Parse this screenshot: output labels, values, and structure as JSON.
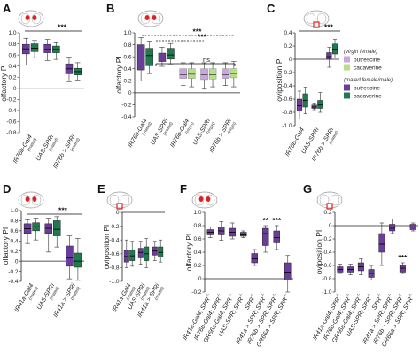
{
  "figure": {
    "colors": {
      "putrescine_mated": "#6a3d9a",
      "cadaverine_mated": "#1f7a4f",
      "putrescine_virgin": "#c9a6e0",
      "cadaverine_virgin": "#b6df8a",
      "brain_outline": "#999999",
      "brain_highlight": "#e02020"
    },
    "legend": {
      "virgin_header": "(virgin female)",
      "mated_header": "(mated female/male)",
      "items": [
        "putrescine",
        "cadaverine",
        "putrescine",
        "cadaverine"
      ]
    }
  },
  "chart_data": [
    {
      "panel": "A",
      "type": "box",
      "ylabel": "olfactory PI",
      "ylim": [
        -0.8,
        1.0
      ],
      "yticks": [
        "1.0",
        "0.8",
        "0.6",
        "0.4",
        "0.2",
        "0",
        "-0.2",
        "-0.4",
        "-0.6",
        "-0.8"
      ],
      "groups": [
        {
          "label": "IR76b-Gal4",
          "sub": "(mated)"
        },
        {
          "label": "UAS-SPRi",
          "sub": "(mated)"
        },
        {
          "label": "IR76b > SPRi",
          "sub": "(mated)"
        }
      ],
      "boxes": [
        {
          "group": 0,
          "series": "putrescine_mated",
          "min": 0.42,
          "q1": 0.62,
          "median": 0.71,
          "q3": 0.79,
          "max": 0.9
        },
        {
          "group": 0,
          "series": "cadaverine_mated",
          "min": 0.55,
          "q1": 0.66,
          "median": 0.72,
          "q3": 0.8,
          "max": 0.86
        },
        {
          "group": 1,
          "series": "putrescine_mated",
          "min": 0.5,
          "q1": 0.64,
          "median": 0.7,
          "q3": 0.79,
          "max": 0.88
        },
        {
          "group": 1,
          "series": "cadaverine_mated",
          "min": 0.52,
          "q1": 0.64,
          "median": 0.7,
          "q3": 0.76,
          "max": 0.82
        },
        {
          "group": 2,
          "series": "putrescine_mated",
          "min": 0.12,
          "q1": 0.26,
          "median": 0.35,
          "q3": 0.44,
          "max": 0.56
        },
        {
          "group": 2,
          "series": "cadaverine_mated",
          "min": 0.15,
          "q1": 0.24,
          "median": 0.3,
          "q3": 0.36,
          "max": 0.46
        }
      ],
      "annotations": [
        {
          "text": "***"
        }
      ]
    },
    {
      "panel": "B",
      "type": "box",
      "ylabel": "olfactory PI",
      "ylim": [
        -0.4,
        1.0
      ],
      "yticks": [
        "1.0",
        "0.8",
        "0.6",
        "0.4",
        "0.2",
        "0",
        "-0.2",
        "-0.4"
      ],
      "groups": [
        {
          "label": "IR76b-Gal4",
          "sub": "(mated)"
        },
        {
          "label": "UAS-SPRi",
          "sub": "(mated)"
        },
        {
          "label": "IR76b-Gal4",
          "sub": "(virgin)"
        },
        {
          "label": "UAS-SPRi",
          "sub": "(virgin)"
        },
        {
          "label": "IR76b > SPRi",
          "sub": "(virgin)"
        }
      ],
      "boxes": [
        {
          "group": 0,
          "series": "putrescine_mated",
          "min": 0.2,
          "q1": 0.38,
          "median": 0.58,
          "q3": 0.8,
          "max": 0.92
        },
        {
          "group": 0,
          "series": "cadaverine_mated",
          "min": 0.32,
          "q1": 0.45,
          "median": 0.62,
          "q3": 0.74,
          "max": 0.86
        },
        {
          "group": 1,
          "series": "putrescine_mated",
          "min": 0.44,
          "q1": 0.52,
          "median": 0.58,
          "q3": 0.66,
          "max": 0.76
        },
        {
          "group": 1,
          "series": "cadaverine_mated",
          "min": 0.48,
          "q1": 0.56,
          "median": 0.63,
          "q3": 0.74,
          "max": 0.82
        },
        {
          "group": 2,
          "series": "putrescine_virgin",
          "min": 0.12,
          "q1": 0.24,
          "median": 0.3,
          "q3": 0.4,
          "max": 0.5
        },
        {
          "group": 2,
          "series": "cadaverine_virgin",
          "min": 0.1,
          "q1": 0.24,
          "median": 0.31,
          "q3": 0.4,
          "max": 0.5
        },
        {
          "group": 3,
          "series": "putrescine_virgin",
          "min": 0.06,
          "q1": 0.22,
          "median": 0.3,
          "q3": 0.4,
          "max": 0.5
        },
        {
          "group": 3,
          "series": "cadaverine_virgin",
          "min": 0.1,
          "q1": 0.23,
          "median": 0.3,
          "q3": 0.4,
          "max": 0.5
        },
        {
          "group": 4,
          "series": "putrescine_virgin",
          "min": 0.12,
          "q1": 0.24,
          "median": 0.3,
          "q3": 0.4,
          "max": 0.5
        },
        {
          "group": 4,
          "series": "cadaverine_virgin",
          "min": 0.1,
          "q1": 0.25,
          "median": 0.32,
          "q3": 0.4,
          "max": 0.52
        }
      ],
      "annotations": [
        {
          "text": "***"
        },
        {
          "text": "***"
        },
        {
          "text": "ns"
        }
      ]
    },
    {
      "panel": "C",
      "type": "box",
      "ylabel": "oviposition PI",
      "ylim": [
        -1.0,
        0.4
      ],
      "yticks": [
        "0.4",
        "0.2",
        "0",
        "-0.2",
        "-0.4",
        "-0.6",
        "-0.8",
        "-1.0"
      ],
      "groups": [
        {
          "label": "IR76b-Gal4",
          "sub": ""
        },
        {
          "label": "UAS-SPRi",
          "sub": ""
        },
        {
          "label": "IR76b > SPRi",
          "sub": "(mated)"
        }
      ],
      "boxes": [
        {
          "group": 0,
          "series": "putrescine_mated",
          "min": -0.9,
          "q1": -0.78,
          "median": -0.7,
          "q3": -0.6,
          "max": -0.48
        },
        {
          "group": 0,
          "series": "cadaverine_mated",
          "min": -0.82,
          "q1": -0.72,
          "median": -0.62,
          "q3": -0.52,
          "max": -0.42
        },
        {
          "group": 1,
          "series": "putrescine_mated",
          "min": -0.76,
          "q1": -0.74,
          "median": -0.72,
          "q3": -0.69,
          "max": -0.66
        },
        {
          "group": 1,
          "series": "cadaverine_mated",
          "min": -0.8,
          "q1": -0.74,
          "median": -0.69,
          "q3": -0.62,
          "max": -0.5
        },
        {
          "group": 2,
          "series": "putrescine_mated",
          "min": -0.12,
          "q1": 0.0,
          "median": 0.04,
          "q3": 0.1,
          "max": 0.18
        },
        {
          "group": 2,
          "series": "cadaverine_mated",
          "min": 0.02,
          "q1": 0.08,
          "median": 0.15,
          "q3": 0.23,
          "max": 0.3
        }
      ],
      "annotations": [
        {
          "text": "***"
        }
      ]
    },
    {
      "panel": "D",
      "type": "box",
      "ylabel": "olfactory PI",
      "ylim": [
        -0.4,
        1.0
      ],
      "yticks": [
        "1.0",
        "0.8",
        "0.6",
        "0.4",
        "0.2",
        "0",
        "-0.2",
        "-0.4"
      ],
      "groups": [
        {
          "label": "IR41a-Gal4",
          "sub": "(mated)"
        },
        {
          "label": "UAS-SPRi",
          "sub": "(mated)"
        },
        {
          "label": "IR41a > SPRi",
          "sub": "(mated)"
        }
      ],
      "boxes": [
        {
          "group": 0,
          "series": "putrescine_mated",
          "min": 0.35,
          "q1": 0.55,
          "median": 0.64,
          "q3": 0.74,
          "max": 0.82
        },
        {
          "group": 0,
          "series": "cadaverine_mated",
          "min": 0.42,
          "q1": 0.6,
          "median": 0.68,
          "q3": 0.76,
          "max": 0.85
        },
        {
          "group": 1,
          "series": "putrescine_mated",
          "min": 0.18,
          "q1": 0.55,
          "median": 0.65,
          "q3": 0.74,
          "max": 0.85
        },
        {
          "group": 1,
          "series": "cadaverine_mated",
          "min": 0.28,
          "q1": 0.5,
          "median": 0.63,
          "q3": 0.8,
          "max": 0.88
        },
        {
          "group": 2,
          "series": "putrescine_mated",
          "min": -0.35,
          "q1": -0.1,
          "median": 0.06,
          "q3": 0.3,
          "max": 0.5
        },
        {
          "group": 2,
          "series": "cadaverine_mated",
          "min": -0.38,
          "q1": -0.12,
          "median": 0.0,
          "q3": 0.16,
          "max": 0.45
        }
      ],
      "annotations": [
        {
          "text": "***"
        }
      ]
    },
    {
      "panel": "E",
      "type": "box",
      "ylabel": "oviposition PI",
      "ylim": [
        -1.0,
        0.0
      ],
      "yticks": [
        "0",
        "-0.2",
        "-0.4",
        "-0.6",
        "-0.8",
        "-1.0"
      ],
      "groups": [
        {
          "label": "IR41a-Gal4",
          "sub": "(mated)"
        },
        {
          "label": "UAS-SPRi",
          "sub": "(mated)"
        },
        {
          "label": "IR41a > SPRi",
          "sub": "(mated)"
        }
      ],
      "boxes": [
        {
          "group": 0,
          "series": "putrescine_mated",
          "min": -0.8,
          "q1": -0.72,
          "median": -0.64,
          "q3": -0.55,
          "max": -0.4
        },
        {
          "group": 0,
          "series": "cadaverine_mated",
          "min": -0.78,
          "q1": -0.7,
          "median": -0.63,
          "q3": -0.55,
          "max": -0.42
        },
        {
          "group": 1,
          "series": "putrescine_mated",
          "min": -0.75,
          "q1": -0.66,
          "median": -0.58,
          "q3": -0.52,
          "max": -0.42
        },
        {
          "group": 1,
          "series": "cadaverine_mated",
          "min": -0.8,
          "q1": -0.7,
          "median": -0.6,
          "q3": -0.5,
          "max": -0.38
        },
        {
          "group": 2,
          "series": "putrescine_mated",
          "min": -0.7,
          "q1": -0.62,
          "median": -0.56,
          "q3": -0.5,
          "max": -0.42
        },
        {
          "group": 2,
          "series": "cadaverine_mated",
          "min": -0.72,
          "q1": -0.65,
          "median": -0.58,
          "q3": -0.5,
          "max": -0.4
        }
      ],
      "annotations": []
    },
    {
      "panel": "F",
      "type": "box",
      "ylabel": "olfactory PI",
      "ylim": [
        -0.2,
        1.0
      ],
      "yticks": [
        "1.0",
        "0.8",
        "0.6",
        "0.4",
        "0.2",
        "0",
        "-0.2"
      ],
      "groups": [
        {
          "label": "IR41a-Gal4; SPR",
          "sup": "-/-"
        },
        {
          "label": "IR76b-Gal4; SPR",
          "sup": "-/-"
        },
        {
          "label": "GR66a-Gal4; SPR",
          "sup": "-/-"
        },
        {
          "label": "UAS-SPR; SPR",
          "sup": "-/-"
        },
        {
          "label": "SPR",
          "sup": "-/-"
        },
        {
          "label": "IR41a > SPR; SPR",
          "sup": "-/-"
        },
        {
          "label": "IR76b > SPR; SPR",
          "sup": "-/-"
        },
        {
          "label": "GR66a > SPR; SPR",
          "sup": "-/-"
        }
      ],
      "boxes": [
        {
          "group": 0,
          "series": "putrescine_mated",
          "min": 0.62,
          "q1": 0.66,
          "median": 0.7,
          "q3": 0.74,
          "max": 0.78
        },
        {
          "group": 1,
          "series": "putrescine_mated",
          "min": 0.58,
          "q1": 0.66,
          "median": 0.72,
          "q3": 0.78,
          "max": 0.86
        },
        {
          "group": 2,
          "series": "putrescine_mated",
          "min": 0.6,
          "q1": 0.64,
          "median": 0.7,
          "q3": 0.76,
          "max": 0.84
        },
        {
          "group": 3,
          "series": "putrescine_mated",
          "min": 0.62,
          "q1": 0.64,
          "median": 0.66,
          "q3": 0.7,
          "max": 0.72
        },
        {
          "group": 4,
          "series": "putrescine_mated",
          "min": 0.2,
          "q1": 0.24,
          "median": 0.3,
          "q3": 0.38,
          "max": 0.44
        },
        {
          "group": 5,
          "series": "putrescine_mated",
          "min": 0.4,
          "q1": 0.5,
          "median": 0.68,
          "q3": 0.76,
          "max": 0.8
        },
        {
          "group": 6,
          "series": "putrescine_mated",
          "min": 0.44,
          "q1": 0.54,
          "median": 0.62,
          "q3": 0.72,
          "max": 0.8
        },
        {
          "group": 7,
          "series": "putrescine_mated",
          "min": -0.2,
          "q1": -0.02,
          "median": 0.1,
          "q3": 0.24,
          "max": 0.35
        }
      ],
      "annotations": [
        {
          "text": "**"
        },
        {
          "text": "***"
        }
      ]
    },
    {
      "panel": "G",
      "type": "box",
      "ylabel": "oviposition PI",
      "ylim": [
        -1.0,
        0.2
      ],
      "yticks": [
        "0.2",
        "0",
        "-0.2",
        "-0.4",
        "-0.6",
        "-0.8",
        "-1.0"
      ],
      "groups": [
        {
          "label": "IR41a-Gal4; SPR",
          "sup": "-/-"
        },
        {
          "label": "IR76b-Gal4; SPR",
          "sup": "-/-"
        },
        {
          "label": "GR66a-Gal4; SPR",
          "sup": "-/-"
        },
        {
          "label": "UAS-SPR; SPR",
          "sup": "-/-"
        },
        {
          "label": "SPR",
          "sup": "-/-"
        },
        {
          "label": "IR41a > SPR; SPR",
          "sup": "-/-"
        },
        {
          "label": "IR76b > SPR; SPR",
          "sup": "-/-"
        },
        {
          "label": "GR66a > SPR; SPR",
          "sup": "-/-"
        }
      ],
      "boxes": [
        {
          "group": 0,
          "series": "putrescine_mated",
          "min": -0.72,
          "q1": -0.7,
          "median": -0.66,
          "q3": -0.62,
          "max": -0.58
        },
        {
          "group": 1,
          "series": "putrescine_mated",
          "min": -0.74,
          "q1": -0.7,
          "median": -0.66,
          "q3": -0.62,
          "max": -0.58
        },
        {
          "group": 2,
          "series": "putrescine_mated",
          "min": -0.74,
          "q1": -0.68,
          "median": -0.62,
          "q3": -0.56,
          "max": -0.5
        },
        {
          "group": 3,
          "series": "putrescine_mated",
          "min": -0.82,
          "q1": -0.78,
          "median": -0.72,
          "q3": -0.66,
          "max": -0.6
        },
        {
          "group": 4,
          "series": "putrescine_mated",
          "min": -0.6,
          "q1": -0.4,
          "median": -0.28,
          "q3": -0.12,
          "max": 0.04
        },
        {
          "group": 5,
          "series": "putrescine_mated",
          "min": -0.12,
          "q1": -0.08,
          "median": -0.04,
          "q3": 0.02,
          "max": 0.1
        },
        {
          "group": 6,
          "series": "putrescine_mated",
          "min": -0.72,
          "q1": -0.7,
          "median": -0.64,
          "q3": -0.6,
          "max": -0.56
        },
        {
          "group": 7,
          "series": "putrescine_mated",
          "min": -0.08,
          "q1": -0.06,
          "median": -0.02,
          "q3": 0.02,
          "max": 0.04
        }
      ],
      "annotations": [
        {
          "text": "***"
        }
      ]
    }
  ]
}
